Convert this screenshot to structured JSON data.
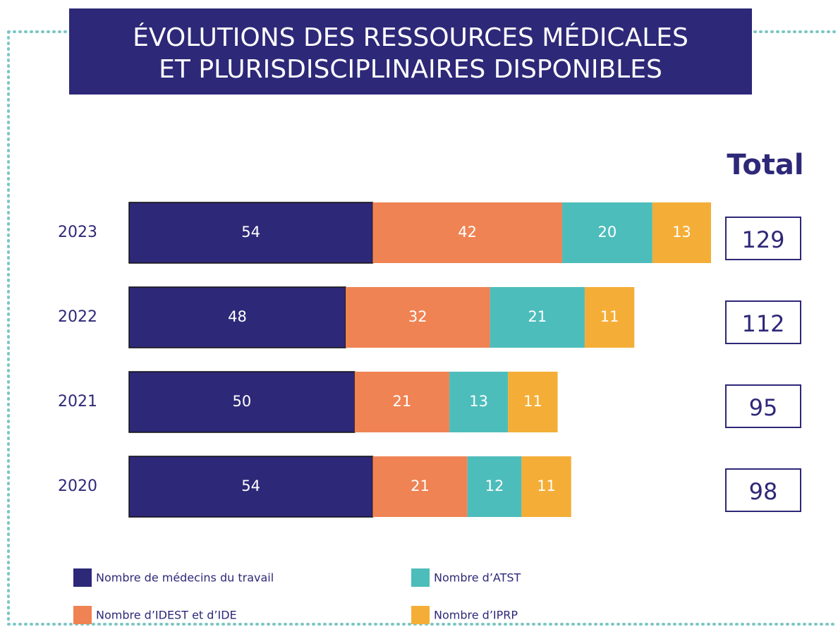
{
  "chart_data": {
    "type": "stacked-barh",
    "title": [
      "ÉVOLUTIONS DES RESSOURCES MÉDICALES",
      "ET PLURISDISCIPLINAIRES DISPONIBLES"
    ],
    "total_label": "Total",
    "categories": [
      "2023",
      "2022",
      "2021",
      "2020"
    ],
    "series": [
      {
        "name": "Nombre de médecins du travail",
        "color": "#2e2878",
        "values": [
          54,
          48,
          50,
          54
        ]
      },
      {
        "name": "Nombre d’IDEST et d’IDE",
        "color": "#ef8354",
        "values": [
          42,
          32,
          21,
          21
        ]
      },
      {
        "name": "Nombre d’ATST",
        "color": "#4dbdbb",
        "values": [
          20,
          21,
          13,
          12
        ]
      },
      {
        "name": "Nombre d’IPRP",
        "color": "#f4ae37",
        "values": [
          13,
          11,
          11,
          11
        ]
      }
    ],
    "totals": [
      129,
      112,
      95,
      98
    ]
  }
}
